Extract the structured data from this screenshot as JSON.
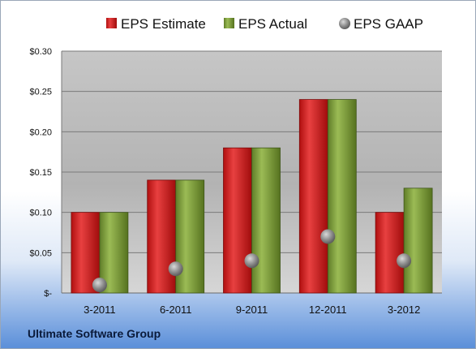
{
  "company": "Ultimate Software Group",
  "chart_data": {
    "type": "bar",
    "title": "",
    "xlabel": "",
    "ylabel": "",
    "categories": [
      "3-2011",
      "6-2011",
      "9-2011",
      "12-2011",
      "3-2012"
    ],
    "series": [
      {
        "name": "EPS Estimate",
        "kind": "bar",
        "color": "#d42020",
        "values": [
          0.1,
          0.14,
          0.18,
          0.24,
          0.1
        ]
      },
      {
        "name": "EPS Actual",
        "kind": "bar",
        "color": "#7a9a3a",
        "values": [
          0.1,
          0.14,
          0.18,
          0.24,
          0.13
        ]
      },
      {
        "name": "EPS GAAP",
        "kind": "marker",
        "color": "#8a8a8a",
        "values": [
          0.01,
          0.03,
          0.04,
          0.07,
          0.04
        ]
      }
    ],
    "ylim": [
      0,
      0.3
    ],
    "yticks": [
      0,
      0.05,
      0.1,
      0.15,
      0.2,
      0.25,
      0.3
    ],
    "ytick_labels": [
      "$-",
      "$0.05",
      "$0.10",
      "$0.15",
      "$0.20",
      "$0.25",
      "$0.30"
    ],
    "grid": true,
    "legend_position": "top"
  }
}
